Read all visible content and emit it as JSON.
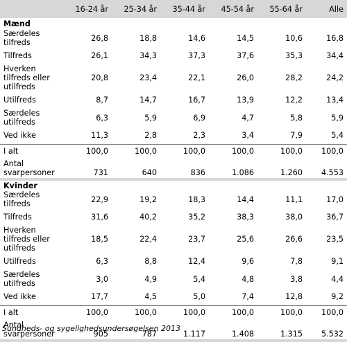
{
  "table": {
    "headers": [
      "",
      "16-24 år",
      "25-34 år",
      "35-44 år",
      "45-54 år",
      "55-64 år",
      "Alle"
    ],
    "sections": [
      {
        "title": "Mænd",
        "rows": [
          {
            "label": "Særdeles tilfreds",
            "values": [
              "26,8",
              "18,8",
              "14,6",
              "14,5",
              "10,6",
              "16,8"
            ]
          },
          {
            "label": "Tilfreds",
            "values": [
              "26,1",
              "34,3",
              "37,3",
              "37,6",
              "35,3",
              "34,4"
            ]
          },
          {
            "label": "Hverken tilfreds eller utilfreds",
            "values": [
              "20,8",
              "23,4",
              "22,1",
              "26,0",
              "28,2",
              "24,2"
            ]
          },
          {
            "label": "Utilfreds",
            "values": [
              "8,7",
              "14,7",
              "16,7",
              "13,9",
              "12,2",
              "13,4"
            ]
          },
          {
            "label": "Særdeles utilfreds",
            "values": [
              "6,3",
              "5,9",
              "6,9",
              "4,7",
              "5,8",
              "5,9"
            ]
          },
          {
            "label": "Ved ikke",
            "values": [
              "11,3",
              "2,8",
              "2,3",
              "3,4",
              "7,9",
              "5,4"
            ]
          }
        ],
        "total": {
          "label": "I alt",
          "values": [
            "100,0",
            "100,0",
            "100,0",
            "100,0",
            "100,0",
            "100,0"
          ]
        },
        "count": {
          "label": "Antal svarpersoner",
          "values": [
            "731",
            "640",
            "836",
            "1.086",
            "1.260",
            "4.553"
          ]
        }
      },
      {
        "title": "Kvinder",
        "rows": [
          {
            "label": "Særdeles tilfreds",
            "values": [
              "22,9",
              "19,2",
              "18,3",
              "14,4",
              "11,1",
              "17,0"
            ]
          },
          {
            "label": "Tilfreds",
            "values": [
              "31,6",
              "40,2",
              "35,2",
              "38,3",
              "38,0",
              "36,7"
            ]
          },
          {
            "label": "Hverken tilfreds eller utilfreds",
            "values": [
              "18,5",
              "22,4",
              "23,7",
              "25,6",
              "26,6",
              "23,5"
            ]
          },
          {
            "label": "Utilfreds",
            "values": [
              "6,3",
              "8,8",
              "12,4",
              "9,6",
              "7,8",
              "9,1"
            ]
          },
          {
            "label": "Særdeles utilfreds",
            "values": [
              "3,0",
              "4,9",
              "5,4",
              "4,8",
              "3,8",
              "4,4"
            ]
          },
          {
            "label": "Ved ikke",
            "values": [
              "17,7",
              "4,5",
              "5,0",
              "7,4",
              "12,8",
              "9,2"
            ]
          }
        ],
        "total": {
          "label": "I alt",
          "values": [
            "100,0",
            "100,0",
            "100,0",
            "100,0",
            "100,0",
            "100,0"
          ]
        },
        "count": {
          "label": "Antal svarpersoner",
          "values": [
            "905",
            "787",
            "1.117",
            "1.408",
            "1.315",
            "5.532"
          ]
        }
      }
    ]
  },
  "source": "Sundheds- og sygelighedsundersøgelsen 2013"
}
